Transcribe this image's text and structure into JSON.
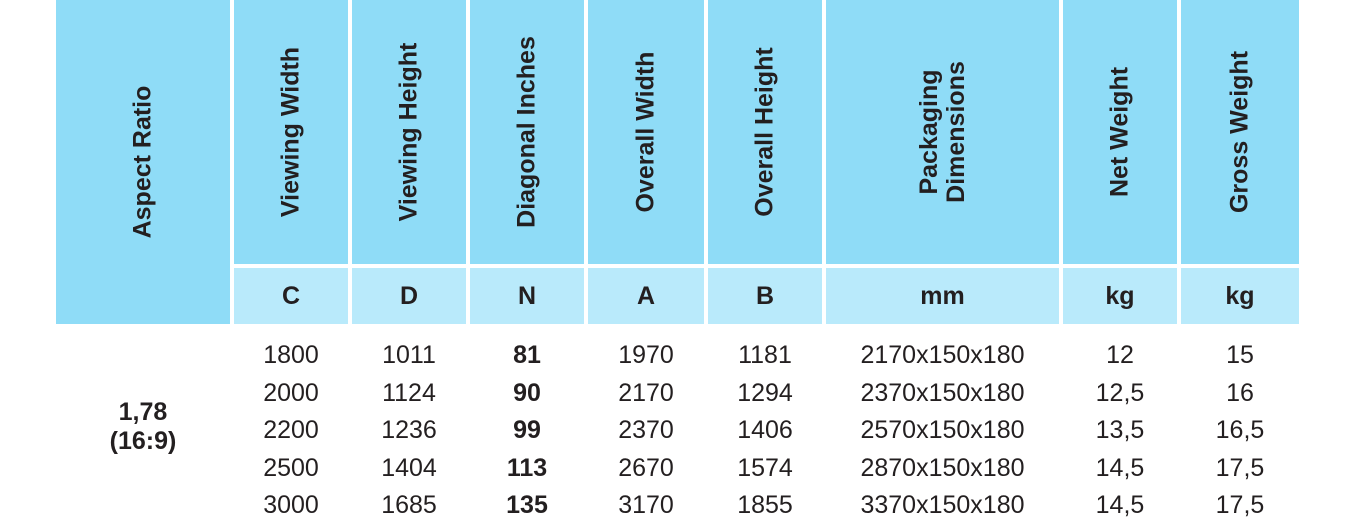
{
  "header": {
    "aspect_ratio": "Aspect Ratio",
    "columns": [
      {
        "label": "Viewing Width",
        "unit": "C"
      },
      {
        "label": "Viewing Height",
        "unit": "D"
      },
      {
        "label": "Diagonal Inches",
        "unit": "N"
      },
      {
        "label": "Overall Width",
        "unit": "A"
      },
      {
        "label": "Overall Height",
        "unit": "B"
      },
      {
        "label": "Packaging\nDimensions",
        "unit": "mm"
      },
      {
        "label": "Net Weight",
        "unit": "kg"
      },
      {
        "label": "Gross Weight",
        "unit": "kg"
      }
    ]
  },
  "aspect": {
    "ratio": "1,78",
    "format": "(16:9)"
  },
  "rows": [
    [
      "1800",
      "1011",
      "81",
      "1970",
      "1181",
      "2170x150x180",
      "12",
      "15"
    ],
    [
      "2000",
      "1124",
      "90",
      "2170",
      "1294",
      "2370x150x180",
      "12,5",
      "16"
    ],
    [
      "2200",
      "1236",
      "99",
      "2370",
      "1406",
      "2570x150x180",
      "13,5",
      "16,5"
    ],
    [
      "2500",
      "1404",
      "113",
      "2670",
      "1574",
      "2870x150x180",
      "14,5",
      "17,5"
    ],
    [
      "3000",
      "1685",
      "135",
      "3170",
      "1855",
      "3370x150x180",
      "14,5",
      "17,5"
    ]
  ],
  "colors": {
    "header": "#8fdcf7",
    "subheader": "#b9eafb",
    "text": "#231f20"
  }
}
